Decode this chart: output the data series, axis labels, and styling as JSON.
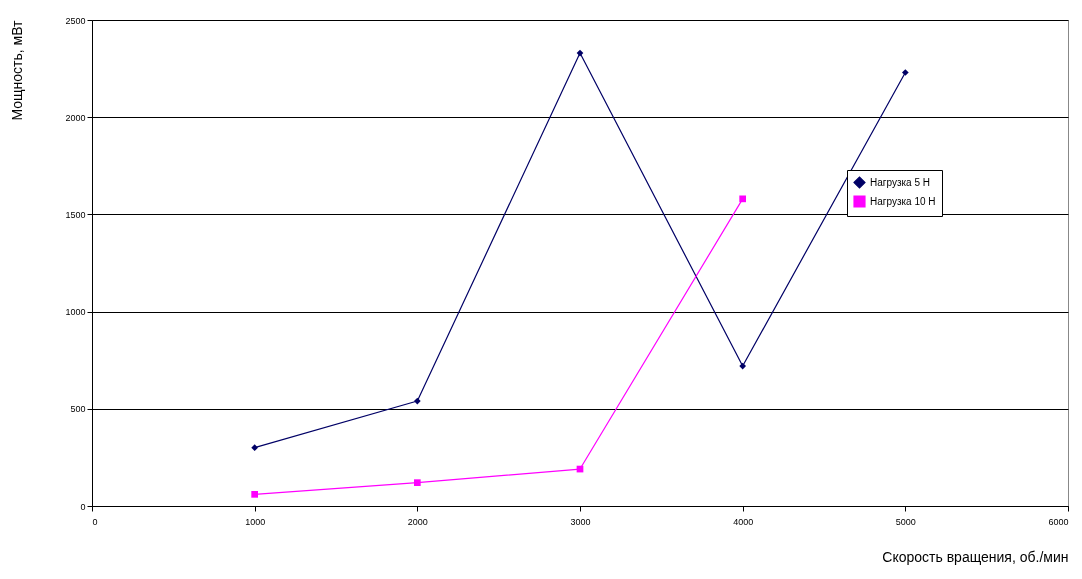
{
  "chart_data": {
    "type": "line",
    "xlabel": "Скорость вращения, об./мин",
    "ylabel": "Мощность, мВт",
    "x": [
      1000,
      2000,
      3000,
      4000,
      5000
    ],
    "series": [
      {
        "name": "Нагрузка 5 Н",
        "color": "#000066",
        "marker": "diamond",
        "values": [
          300,
          540,
          2330,
          720,
          2230
        ]
      },
      {
        "name": "Нагрузка 10 Н",
        "color": "#ff00ff",
        "marker": "square",
        "values": [
          60,
          120,
          190,
          1580,
          null
        ]
      }
    ],
    "xlim": [
      0,
      6000
    ],
    "xticks": [
      0,
      1000,
      2000,
      3000,
      4000,
      5000,
      6000
    ],
    "ylim": [
      0,
      2500
    ],
    "yticks": [
      0,
      500,
      1000,
      1500,
      2000,
      2500
    ],
    "grid": "y",
    "legend": "right"
  }
}
